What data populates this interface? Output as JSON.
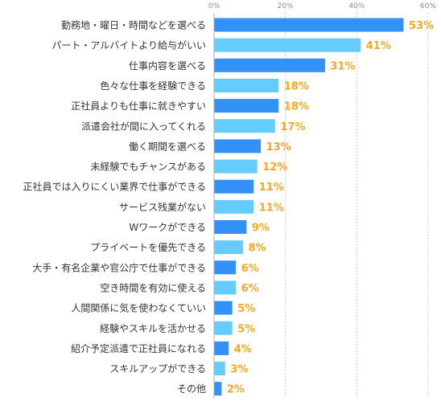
{
  "chart_data": {
    "type": "bar",
    "orientation": "horizontal",
    "categories": [
      "勤務地・曜日・時間などを選べる",
      "パート・アルバイトより給与がいい",
      "仕事内容を選べる",
      "色々な仕事を経験できる",
      "正社員よりも仕事に就きやすい",
      "派遣会社が間に入ってくれる",
      "働く期間を選べる",
      "未経験でもチャンスがある",
      "正社員では入りにくい業界で仕事ができる",
      "サービス残業がない",
      "Wワークができる",
      "プライベートを優先できる",
      "大手・有名企業や官公庁で仕事ができる",
      "空き時間を有効に使える",
      "人間関係に気を使わなくていい",
      "経験やスキルを活かせる",
      "紹介予定派遣で正社員になれる",
      "スキルアップができる",
      "その他"
    ],
    "values": [
      53,
      41,
      31,
      18,
      18,
      17,
      13,
      12,
      11,
      11,
      9,
      8,
      6,
      6,
      5,
      5,
      4,
      3,
      2
    ],
    "value_labels": [
      "53%",
      "41%",
      "31%",
      "18%",
      "18%",
      "17%",
      "13%",
      "12%",
      "11%",
      "11%",
      "9%",
      "8%",
      "6%",
      "6%",
      "5%",
      "5%",
      "4%",
      "3%",
      "2%"
    ],
    "xlim": [
      0,
      60
    ],
    "ticks": [
      0,
      20,
      40,
      60
    ],
    "tick_labels": [
      "0%",
      "20%",
      "40%",
      "60%"
    ],
    "grid": true,
    "colors": {
      "bar_dark": "#3391f5",
      "bar_light": "#66ccff",
      "value_label": "#f5a623",
      "category_label": "#333333",
      "tick_label": "#8a8a8a",
      "axis": "#b0b0b0",
      "grid": "#cccccc"
    }
  }
}
